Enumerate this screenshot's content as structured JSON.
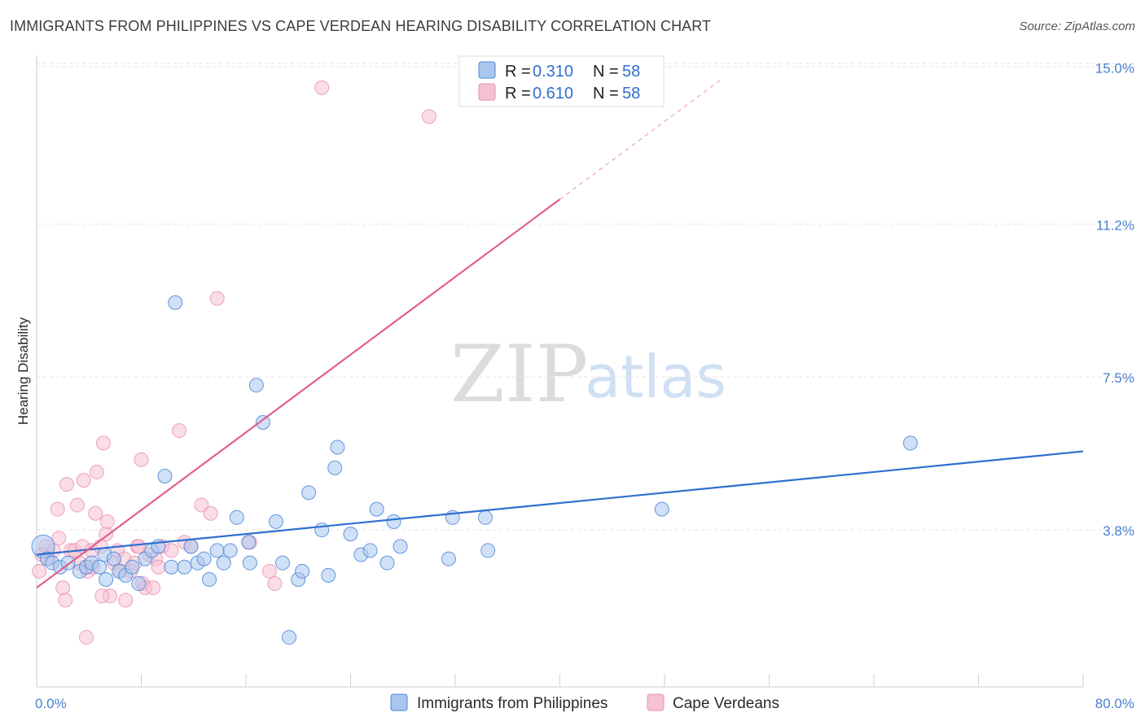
{
  "header": {
    "title": "IMMIGRANTS FROM PHILIPPINES VS CAPE VERDEAN HEARING DISABILITY CORRELATION CHART",
    "source": "Source: ZipAtlas.com"
  },
  "watermark": {
    "zip": "ZIP",
    "atlas": "atlas"
  },
  "colors": {
    "blue": "#4a86d8",
    "blue_fill": "#a9c6ee",
    "blue_line": "#2f6fcf",
    "pink": "#e98fae",
    "pink_fill": "#f6c1d2",
    "pink_line": "#e0608b",
    "axis_text": "#4a7fd1"
  },
  "legend": {
    "rows": [
      {
        "r_label": "R =",
        "r_value": "0.310",
        "n_label": "N =",
        "n_value": "58"
      },
      {
        "r_label": "R =",
        "r_value": "0.610",
        "n_label": "N =",
        "n_value": "58"
      }
    ]
  },
  "chart_data": {
    "type": "scatter",
    "title": "IMMIGRANTS FROM PHILIPPINES VS CAPE VERDEAN HEARING DISABILITY CORRELATION CHART",
    "xlabel": "",
    "ylabel": "Hearing Disability",
    "xlim": [
      0,
      80
    ],
    "ylim": [
      0,
      15.4
    ],
    "x_tick_labels": [
      "0.0%",
      "80.0%"
    ],
    "y_ticks": [
      3.8,
      7.5,
      11.2,
      15.0
    ],
    "y_tick_labels": [
      "3.8%",
      "7.5%",
      "11.2%",
      "15.0%"
    ],
    "grid": true,
    "legend_position": "top-center",
    "series": [
      {
        "name": "Immigrants from Philippines",
        "color": "#4a86d8",
        "trend": {
          "x": [
            0,
            80
          ],
          "y": [
            3.2,
            5.7
          ]
        },
        "points": [
          [
            0.5,
            3.4
          ],
          [
            0.8,
            3.1
          ],
          [
            1.2,
            3.0
          ],
          [
            1.8,
            2.9
          ],
          [
            2.4,
            3.0
          ],
          [
            3.3,
            2.8
          ],
          [
            3.8,
            2.9
          ],
          [
            4.2,
            3.0
          ],
          [
            4.8,
            2.9
          ],
          [
            5.2,
            3.2
          ],
          [
            5.3,
            2.6
          ],
          [
            5.9,
            3.1
          ],
          [
            6.3,
            2.8
          ],
          [
            6.8,
            2.7
          ],
          [
            7.3,
            2.9
          ],
          [
            7.8,
            2.5
          ],
          [
            8.3,
            3.1
          ],
          [
            8.8,
            3.3
          ],
          [
            9.3,
            3.4
          ],
          [
            9.8,
            5.1
          ],
          [
            10.3,
            2.9
          ],
          [
            10.6,
            9.3
          ],
          [
            11.3,
            2.9
          ],
          [
            11.8,
            3.4
          ],
          [
            12.3,
            3.0
          ],
          [
            12.8,
            3.1
          ],
          [
            13.2,
            2.6
          ],
          [
            13.8,
            3.3
          ],
          [
            14.3,
            3.0
          ],
          [
            14.8,
            3.3
          ],
          [
            15.3,
            4.1
          ],
          [
            16.2,
            3.5
          ],
          [
            16.3,
            3.0
          ],
          [
            16.8,
            7.3
          ],
          [
            17.3,
            6.4
          ],
          [
            18.3,
            4.0
          ],
          [
            18.8,
            3.0
          ],
          [
            19.3,
            1.2
          ],
          [
            20.0,
            2.6
          ],
          [
            20.3,
            2.8
          ],
          [
            20.8,
            4.7
          ],
          [
            21.8,
            3.8
          ],
          [
            22.3,
            2.7
          ],
          [
            22.8,
            5.3
          ],
          [
            23.0,
            5.8
          ],
          [
            24.0,
            3.7
          ],
          [
            24.8,
            3.2
          ],
          [
            25.5,
            3.3
          ],
          [
            26.0,
            4.3
          ],
          [
            26.8,
            3.0
          ],
          [
            27.3,
            4.0
          ],
          [
            27.8,
            3.4
          ],
          [
            31.5,
            3.1
          ],
          [
            31.8,
            4.1
          ],
          [
            34.3,
            4.1
          ],
          [
            34.5,
            3.3
          ],
          [
            47.8,
            4.3
          ],
          [
            66.8,
            5.9
          ]
        ]
      },
      {
        "name": "Cape Verdeans",
        "color": "#e98fae",
        "trend": {
          "x": [
            0,
            40
          ],
          "y": [
            2.4,
            11.8
          ]
        },
        "points": [
          [
            0.2,
            2.8
          ],
          [
            0.4,
            3.2
          ],
          [
            0.7,
            3.4
          ],
          [
            0.9,
            3.1
          ],
          [
            1.3,
            3.3
          ],
          [
            1.6,
            4.3
          ],
          [
            1.7,
            3.6
          ],
          [
            2.0,
            2.4
          ],
          [
            2.2,
            2.1
          ],
          [
            2.3,
            4.9
          ],
          [
            2.6,
            3.3
          ],
          [
            2.9,
            3.3
          ],
          [
            3.1,
            4.4
          ],
          [
            3.3,
            3.0
          ],
          [
            3.5,
            3.4
          ],
          [
            3.6,
            5.0
          ],
          [
            3.8,
            2.9
          ],
          [
            3.9,
            2.8
          ],
          [
            4.2,
            3.3
          ],
          [
            4.3,
            2.9
          ],
          [
            4.5,
            4.2
          ],
          [
            4.6,
            5.2
          ],
          [
            4.9,
            3.4
          ],
          [
            5.1,
            5.9
          ],
          [
            5.3,
            3.7
          ],
          [
            5.4,
            4.0
          ],
          [
            5.6,
            2.2
          ],
          [
            5.9,
            3.0
          ],
          [
            6.2,
            3.3
          ],
          [
            6.4,
            2.8
          ],
          [
            6.7,
            3.1
          ],
          [
            6.8,
            2.1
          ],
          [
            7.2,
            2.8
          ],
          [
            7.5,
            3.0
          ],
          [
            7.7,
            3.4
          ],
          [
            7.8,
            3.4
          ],
          [
            8.0,
            5.5
          ],
          [
            8.1,
            2.5
          ],
          [
            8.3,
            2.4
          ],
          [
            8.6,
            3.2
          ],
          [
            8.9,
            2.4
          ],
          [
            9.1,
            3.1
          ],
          [
            9.3,
            2.9
          ],
          [
            9.6,
            3.4
          ],
          [
            10.3,
            3.3
          ],
          [
            10.9,
            6.2
          ],
          [
            11.3,
            3.5
          ],
          [
            11.8,
            3.4
          ],
          [
            12.6,
            4.4
          ],
          [
            13.3,
            4.2
          ],
          [
            13.8,
            9.4
          ],
          [
            16.3,
            3.5
          ],
          [
            17.8,
            2.8
          ],
          [
            18.2,
            2.5
          ],
          [
            21.8,
            14.5
          ],
          [
            30.0,
            13.8
          ],
          [
            3.8,
            1.2
          ],
          [
            5.0,
            2.2
          ]
        ]
      }
    ]
  },
  "bottom_legend": {
    "items": [
      {
        "label": "Immigrants from Philippines"
      },
      {
        "label": "Cape Verdeans"
      }
    ]
  }
}
